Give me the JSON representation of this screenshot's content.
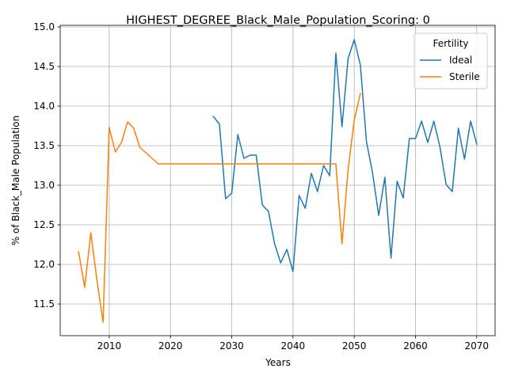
{
  "chart_data": {
    "type": "line",
    "title": "HIGHEST_DEGREE_Black_Male_Population_Scoring: 0",
    "xlabel": "Years",
    "ylabel": "% of Black_Male Population",
    "xlim": [
      2002,
      2073
    ],
    "ylim": [
      11.1,
      15.02
    ],
    "xticks": [
      2010,
      2020,
      2030,
      2040,
      2050,
      2060,
      2070
    ],
    "yticks": [
      11.5,
      12.0,
      12.5,
      13.0,
      13.5,
      14.0,
      14.5,
      15.0
    ],
    "xtick_labels": [
      "2010",
      "2020",
      "2030",
      "2040",
      "2050",
      "2060",
      "2070"
    ],
    "ytick_labels": [
      "11.5",
      "12.0",
      "12.5",
      "13.0",
      "13.5",
      "14.0",
      "14.5",
      "15.0"
    ],
    "grid": true,
    "legend": {
      "title": "Fertility",
      "placement": "upper right"
    },
    "series": [
      {
        "name": "Ideal",
        "color": "#1f77b4",
        "x": [
          2027,
          2028,
          2029,
          2030,
          2031,
          2032,
          2033,
          2034,
          2035,
          2036,
          2037,
          2038,
          2039,
          2040,
          2041,
          2042,
          2043,
          2044,
          2045,
          2046,
          2047,
          2048,
          2049,
          2050,
          2051,
          2052,
          2053,
          2054,
          2055,
          2056,
          2057,
          2058,
          2059,
          2060,
          2061,
          2062,
          2063,
          2064,
          2065,
          2066,
          2067,
          2068,
          2069,
          2070
        ],
        "y": [
          13.87,
          13.77,
          12.83,
          12.9,
          13.64,
          13.34,
          13.38,
          13.38,
          12.75,
          12.67,
          12.26,
          12.02,
          12.19,
          11.91,
          12.87,
          12.71,
          13.15,
          12.92,
          13.25,
          13.12,
          14.67,
          13.74,
          14.6,
          14.84,
          14.52,
          13.55,
          13.15,
          12.62,
          13.1,
          12.08,
          13.05,
          12.84,
          13.59,
          13.59,
          13.81,
          13.54,
          13.81,
          13.48,
          13.01,
          12.92,
          13.72,
          13.33,
          13.81,
          13.52
        ]
      },
      {
        "name": "Sterile",
        "color": "#ff7f0e",
        "x": [
          2005,
          2006,
          2007,
          2008,
          2009,
          2010,
          2011,
          2012,
          2013,
          2014,
          2015,
          2016,
          2017,
          2018,
          2019,
          2020,
          2021,
          2022,
          2023,
          2024,
          2025,
          2026,
          2027,
          2028,
          2029,
          2030,
          2031,
          2032,
          2033,
          2034,
          2035,
          2036,
          2037,
          2038,
          2039,
          2040,
          2041,
          2042,
          2043,
          2044,
          2045,
          2046,
          2047,
          2048,
          2049,
          2050,
          2051
        ],
        "y": [
          12.16,
          11.71,
          12.4,
          11.8,
          11.27,
          13.73,
          13.42,
          13.54,
          13.8,
          13.72,
          13.48,
          13.41,
          13.34,
          13.27,
          13.27,
          13.27,
          13.27,
          13.27,
          13.27,
          13.27,
          13.27,
          13.27,
          13.27,
          13.27,
          13.27,
          13.27,
          13.27,
          13.27,
          13.27,
          13.27,
          13.27,
          13.27,
          13.27,
          13.27,
          13.27,
          13.27,
          13.27,
          13.27,
          13.27,
          13.27,
          13.27,
          13.27,
          13.27,
          12.26,
          13.2,
          13.82,
          14.16
        ]
      }
    ]
  }
}
